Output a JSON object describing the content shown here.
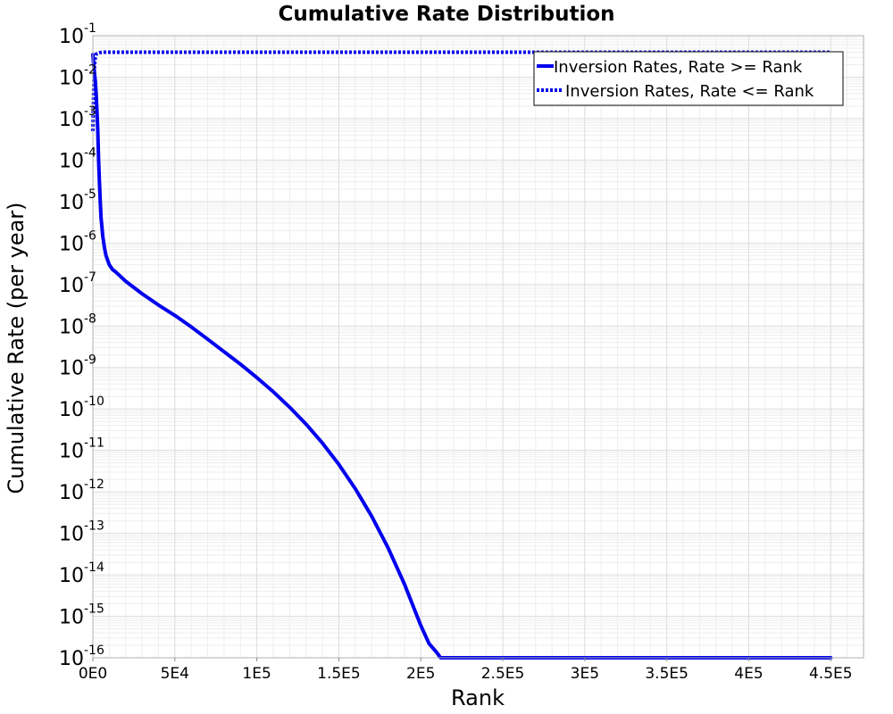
{
  "chart_data": {
    "type": "line",
    "title": "Cumulative Rate Distribution",
    "xlabel": "Rank",
    "ylabel": "Cumulative Rate (per year)",
    "xlim": [
      0,
      470000
    ],
    "ylim": [
      1e-16,
      0.1
    ],
    "yscale": "log",
    "grid": true,
    "legend_position": "top-right",
    "x_ticks": [
      {
        "value": 0,
        "label": "0E0"
      },
      {
        "value": 50000,
        "label": "5E4"
      },
      {
        "value": 100000,
        "label": "1E5"
      },
      {
        "value": 150000,
        "label": "1.5E5"
      },
      {
        "value": 200000,
        "label": "2E5"
      },
      {
        "value": 250000,
        "label": "2.5E5"
      },
      {
        "value": 300000,
        "label": "3E5"
      },
      {
        "value": 350000,
        "label": "3.5E5"
      },
      {
        "value": 400000,
        "label": "4E5"
      },
      {
        "value": 450000,
        "label": "4.5E5"
      }
    ],
    "y_ticks": [
      {
        "exp": -1,
        "base": "10",
        "sup": "-1"
      },
      {
        "exp": -2,
        "base": "10",
        "sup": "-2"
      },
      {
        "exp": -3,
        "base": "10",
        "sup": "-3"
      },
      {
        "exp": -4,
        "base": "10",
        "sup": "-4"
      },
      {
        "exp": -5,
        "base": "10",
        "sup": "-5"
      },
      {
        "exp": -6,
        "base": "10",
        "sup": "-6"
      },
      {
        "exp": -7,
        "base": "10",
        "sup": "-7"
      },
      {
        "exp": -8,
        "base": "10",
        "sup": "-8"
      },
      {
        "exp": -9,
        "base": "10",
        "sup": "-9"
      },
      {
        "exp": -10,
        "base": "10",
        "sup": "-10"
      },
      {
        "exp": -11,
        "base": "10",
        "sup": "-11"
      },
      {
        "exp": -12,
        "base": "10",
        "sup": "-12"
      },
      {
        "exp": -13,
        "base": "10",
        "sup": "-13"
      },
      {
        "exp": -14,
        "base": "10",
        "sup": "-14"
      },
      {
        "exp": -15,
        "base": "10",
        "sup": "-15"
      },
      {
        "exp": -16,
        "base": "10",
        "sup": "-16"
      }
    ],
    "series": [
      {
        "name": "Inversion Rates, Rate >= Rank",
        "color": "#0000ee",
        "style": "solid",
        "x": [
          0,
          500,
          1000,
          1500,
          2000,
          2500,
          3000,
          3500,
          4000,
          4500,
          5000,
          5500,
          6000,
          7000,
          8000,
          10000,
          12000,
          14000,
          20000,
          30000,
          40000,
          50000,
          60000,
          70000,
          80000,
          90000,
          100000,
          110000,
          120000,
          130000,
          140000,
          150000,
          160000,
          170000,
          180000,
          190000,
          200000,
          205000,
          210000,
          212000,
          213000,
          220000,
          300000,
          400000,
          450000
        ],
        "y": [
          0.035,
          0.02,
          0.012,
          0.008,
          0.004,
          0.0015,
          0.0005,
          0.0001,
          3e-05,
          1e-05,
          4e-06,
          2.5e-06,
          1.5e-06,
          8e-07,
          5e-07,
          3e-07,
          2.3e-07,
          2e-07,
          1.2e-07,
          6e-08,
          3.2e-08,
          1.8e-08,
          9.5e-09,
          4.8e-09,
          2.4e-09,
          1.2e-09,
          5.7e-10,
          2.6e-10,
          1.1e-10,
          4.3e-11,
          1.5e-11,
          4.6e-12,
          1.2e-12,
          2.6e-13,
          4.5e-14,
          6e-15,
          6e-16,
          2.2e-16,
          1.3e-16,
          1e-16,
          1e-16,
          1e-16,
          1e-16,
          1e-16,
          1e-16
        ]
      },
      {
        "name": "Inversion Rates, Rate <= Rank",
        "color": "#0000ee",
        "style": "dotted",
        "x": [
          0,
          500,
          1000,
          1500,
          2000,
          2500,
          3000,
          4000,
          5000,
          6000,
          8000,
          10000,
          450000
        ],
        "y": [
          0.0005,
          0.005,
          0.02,
          0.03,
          0.035,
          0.037,
          0.038,
          0.039,
          0.0395,
          0.04,
          0.04,
          0.04,
          0.04
        ]
      }
    ]
  }
}
